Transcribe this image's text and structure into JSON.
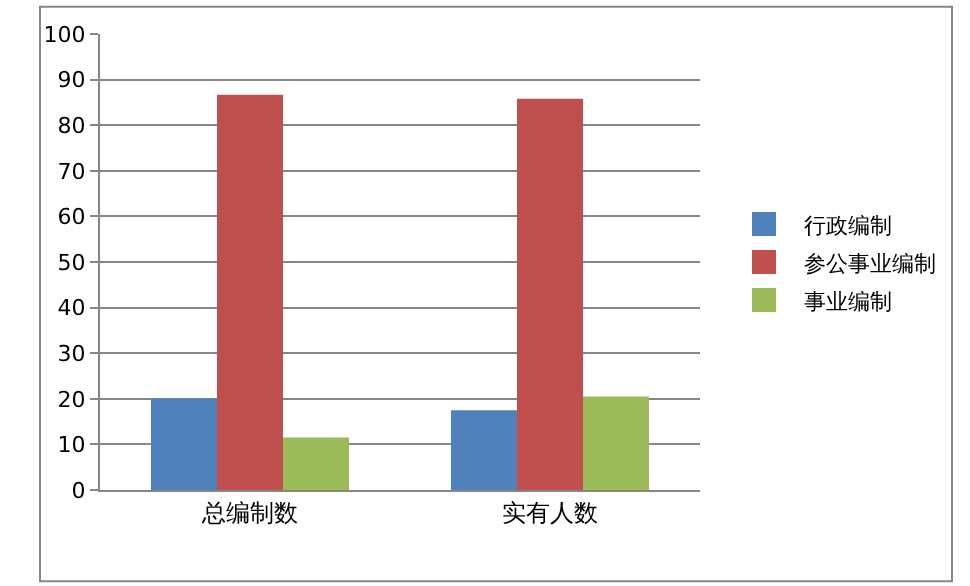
{
  "chart_data": {
    "type": "bar",
    "categories": [
      "总编制数",
      "实有人数"
    ],
    "series": [
      {
        "name": "行政编制",
        "color": "#4f81bd",
        "values": [
          20,
          17.5
        ]
      },
      {
        "name": "参公事业编制",
        "color": "#c0504d",
        "values": [
          86.7,
          85.8
        ]
      },
      {
        "name": "事业编制",
        "color": "#9bbb59",
        "values": [
          11.5,
          20.5
        ]
      }
    ],
    "ylim": [
      0,
      100
    ],
    "yticks": [
      0,
      10,
      20,
      30,
      40,
      50,
      60,
      70,
      80,
      90,
      100
    ],
    "grid": "y",
    "legend": "right"
  }
}
